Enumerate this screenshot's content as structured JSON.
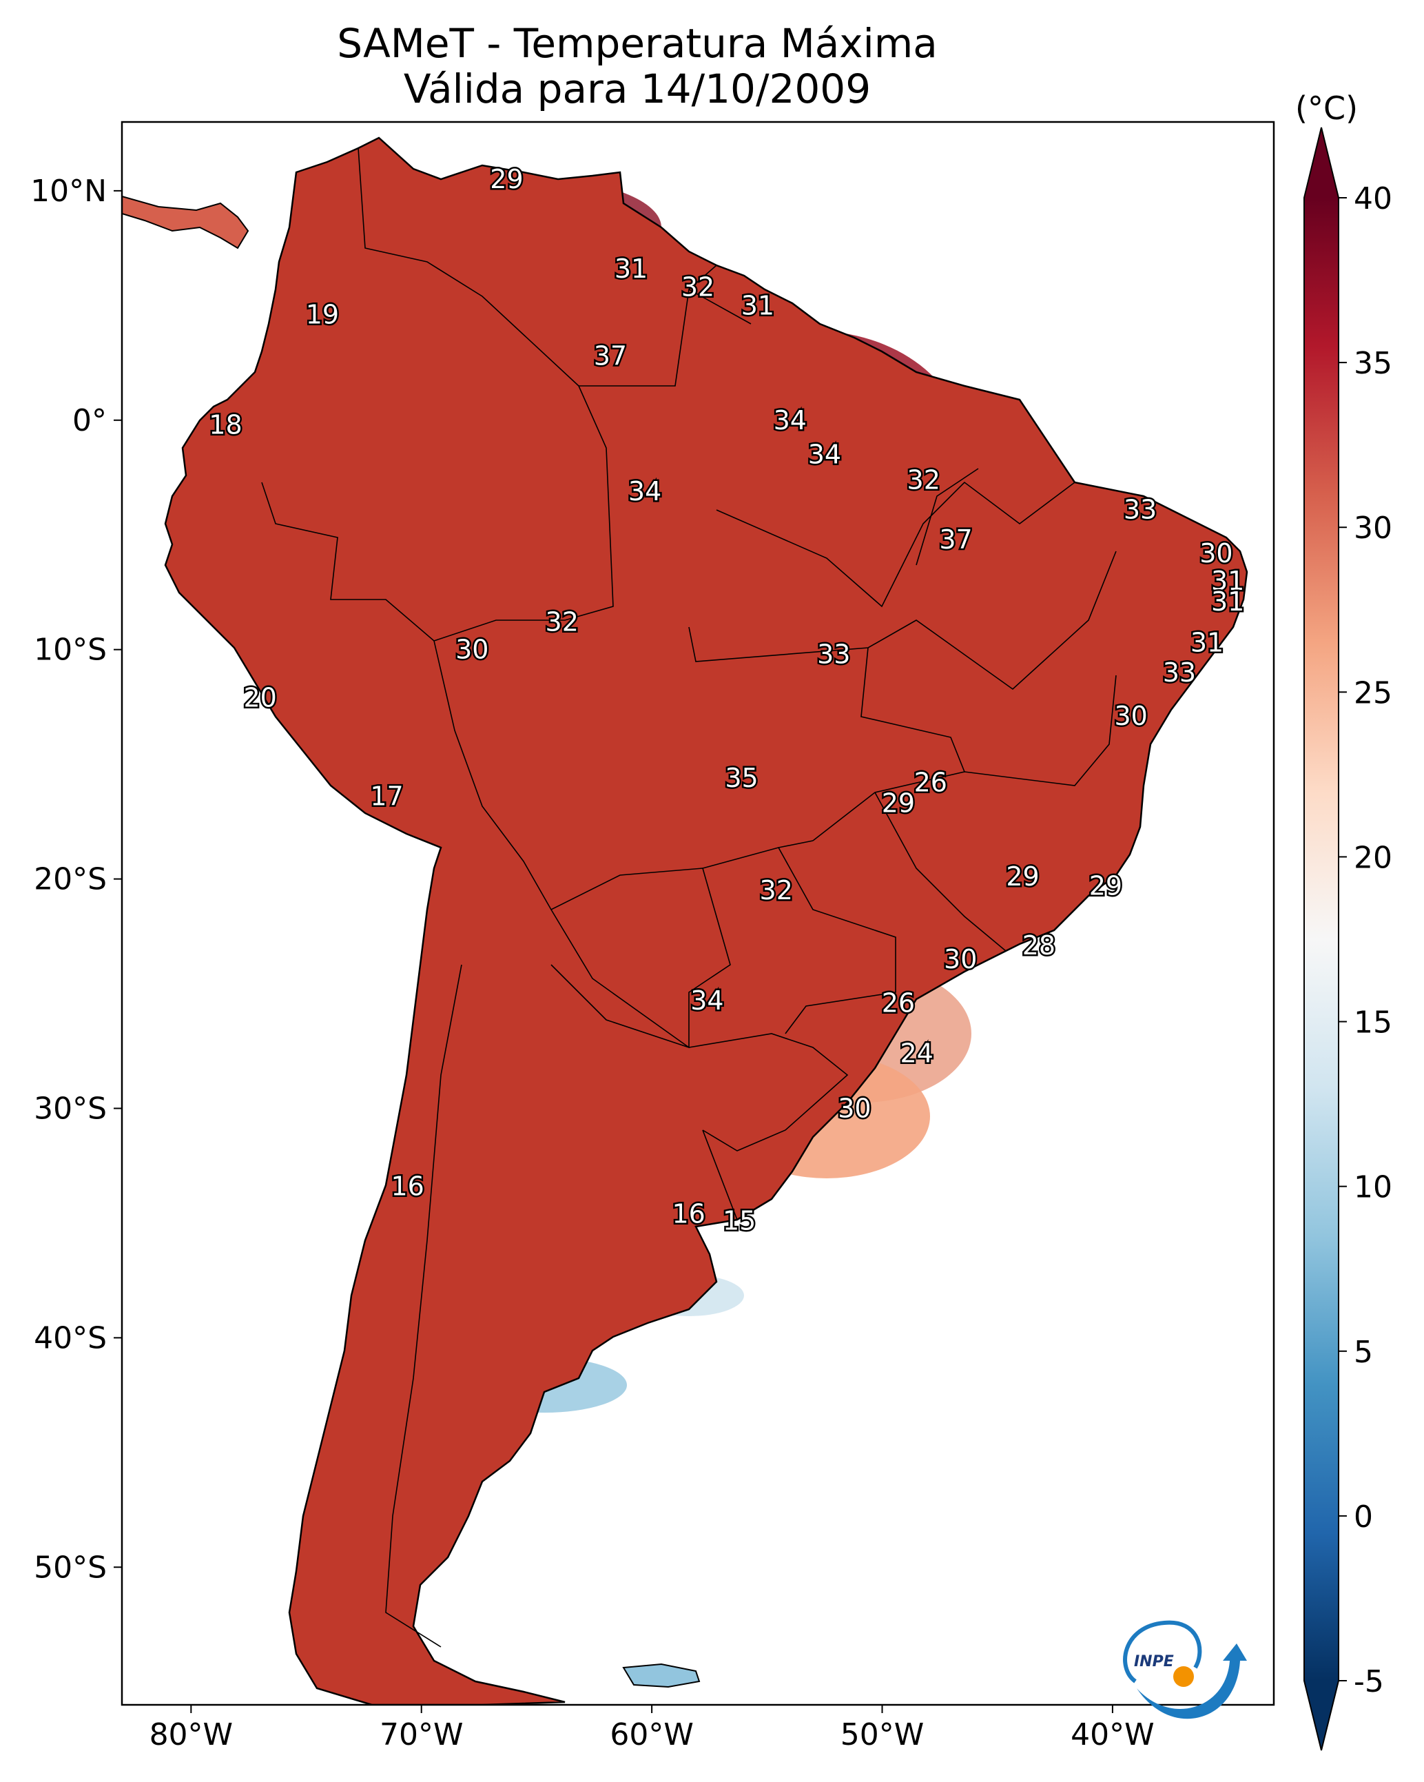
{
  "title": {
    "line1": "SAMeT - Temperatura Máxima",
    "line2": "Válida para 14/10/2009"
  },
  "axes": {
    "lon_ticks": [
      {
        "value": -80,
        "label": "80°W"
      },
      {
        "value": -70,
        "label": "70°W"
      },
      {
        "value": -60,
        "label": "60°W"
      },
      {
        "value": -50,
        "label": "50°W"
      },
      {
        "value": -40,
        "label": "40°W"
      }
    ],
    "lat_ticks": [
      {
        "value": 10,
        "label": "10°N"
      },
      {
        "value": 0,
        "label": "0°"
      },
      {
        "value": -10,
        "label": "10°S"
      },
      {
        "value": -20,
        "label": "20°S"
      },
      {
        "value": -30,
        "label": "30°S"
      },
      {
        "value": -40,
        "label": "40°S"
      },
      {
        "value": -50,
        "label": "50°S"
      }
    ],
    "lon_range": [
      -83,
      -33
    ],
    "lat_range": [
      -56,
      13
    ]
  },
  "colorbar": {
    "unit": "(°C)",
    "min": -5,
    "max": 40,
    "ticks": [
      {
        "value": 40,
        "label": "40"
      },
      {
        "value": 35,
        "label": "35"
      },
      {
        "value": 30,
        "label": "30"
      },
      {
        "value": 25,
        "label": "25"
      },
      {
        "value": 20,
        "label": "20"
      },
      {
        "value": 15,
        "label": "15"
      },
      {
        "value": 10,
        "label": "10"
      },
      {
        "value": 5,
        "label": "5"
      },
      {
        "value": 0,
        "label": "0"
      },
      {
        "value": -5,
        "label": "-5"
      }
    ],
    "colors": [
      "#053061",
      "#2166ac",
      "#4393c3",
      "#92c5de",
      "#d1e5f0",
      "#f7f7f7",
      "#fddbc7",
      "#f4a582",
      "#d6604d",
      "#b2182b",
      "#67001f"
    ]
  },
  "stations": [
    {
      "label": "29",
      "lon": -66.3,
      "lat": 10.5
    },
    {
      "label": "19",
      "lon": -74.3,
      "lat": 4.6
    },
    {
      "label": "31",
      "lon": -60.9,
      "lat": 6.6
    },
    {
      "label": "32",
      "lon": -58.0,
      "lat": 5.8
    },
    {
      "label": "31",
      "lon": -55.4,
      "lat": 5.0
    },
    {
      "label": "37",
      "lon": -61.8,
      "lat": 2.8
    },
    {
      "label": "18",
      "lon": -78.5,
      "lat": -0.2
    },
    {
      "label": "34",
      "lon": -54.0,
      "lat": 0.0
    },
    {
      "label": "34",
      "lon": -52.5,
      "lat": -1.5
    },
    {
      "label": "34",
      "lon": -60.3,
      "lat": -3.1
    },
    {
      "label": "32",
      "lon": -48.2,
      "lat": -2.6
    },
    {
      "label": "33",
      "lon": -38.8,
      "lat": -3.9
    },
    {
      "label": "37",
      "lon": -46.8,
      "lat": -5.2
    },
    {
      "label": "30",
      "lon": -35.5,
      "lat": -5.8
    },
    {
      "label": "31",
      "lon": -35.0,
      "lat": -7.0
    },
    {
      "label": "31",
      "lon": -35.0,
      "lat": -7.9
    },
    {
      "label": "32",
      "lon": -63.9,
      "lat": -8.8
    },
    {
      "label": "30",
      "lon": -67.8,
      "lat": -10.0
    },
    {
      "label": "33",
      "lon": -52.1,
      "lat": -10.2
    },
    {
      "label": "31",
      "lon": -35.9,
      "lat": -9.7
    },
    {
      "label": "33",
      "lon": -37.1,
      "lat": -11.0
    },
    {
      "label": "20",
      "lon": -77.0,
      "lat": -12.1
    },
    {
      "label": "30",
      "lon": -39.2,
      "lat": -12.9
    },
    {
      "label": "17",
      "lon": -71.5,
      "lat": -16.4
    },
    {
      "label": "35",
      "lon": -56.1,
      "lat": -15.6
    },
    {
      "label": "26",
      "lon": -47.9,
      "lat": -15.8
    },
    {
      "label": "29",
      "lon": -49.3,
      "lat": -16.7
    },
    {
      "label": "32",
      "lon": -54.6,
      "lat": -20.5
    },
    {
      "label": "29",
      "lon": -43.9,
      "lat": -19.9
    },
    {
      "label": "29",
      "lon": -40.3,
      "lat": -20.3
    },
    {
      "label": "28",
      "lon": -43.2,
      "lat": -22.9
    },
    {
      "label": "30",
      "lon": -46.6,
      "lat": -23.5
    },
    {
      "label": "34",
      "lon": -57.6,
      "lat": -25.3
    },
    {
      "label": "26",
      "lon": -49.3,
      "lat": -25.4
    },
    {
      "label": "24",
      "lon": -48.5,
      "lat": -27.6
    },
    {
      "label": "30",
      "lon": -51.2,
      "lat": -30.0
    },
    {
      "label": "16",
      "lon": -70.6,
      "lat": -33.4
    },
    {
      "label": "16",
      "lon": -58.4,
      "lat": -34.6
    },
    {
      "label": "15",
      "lon": -56.2,
      "lat": -34.9
    }
  ],
  "logo": {
    "text": "INPE"
  }
}
